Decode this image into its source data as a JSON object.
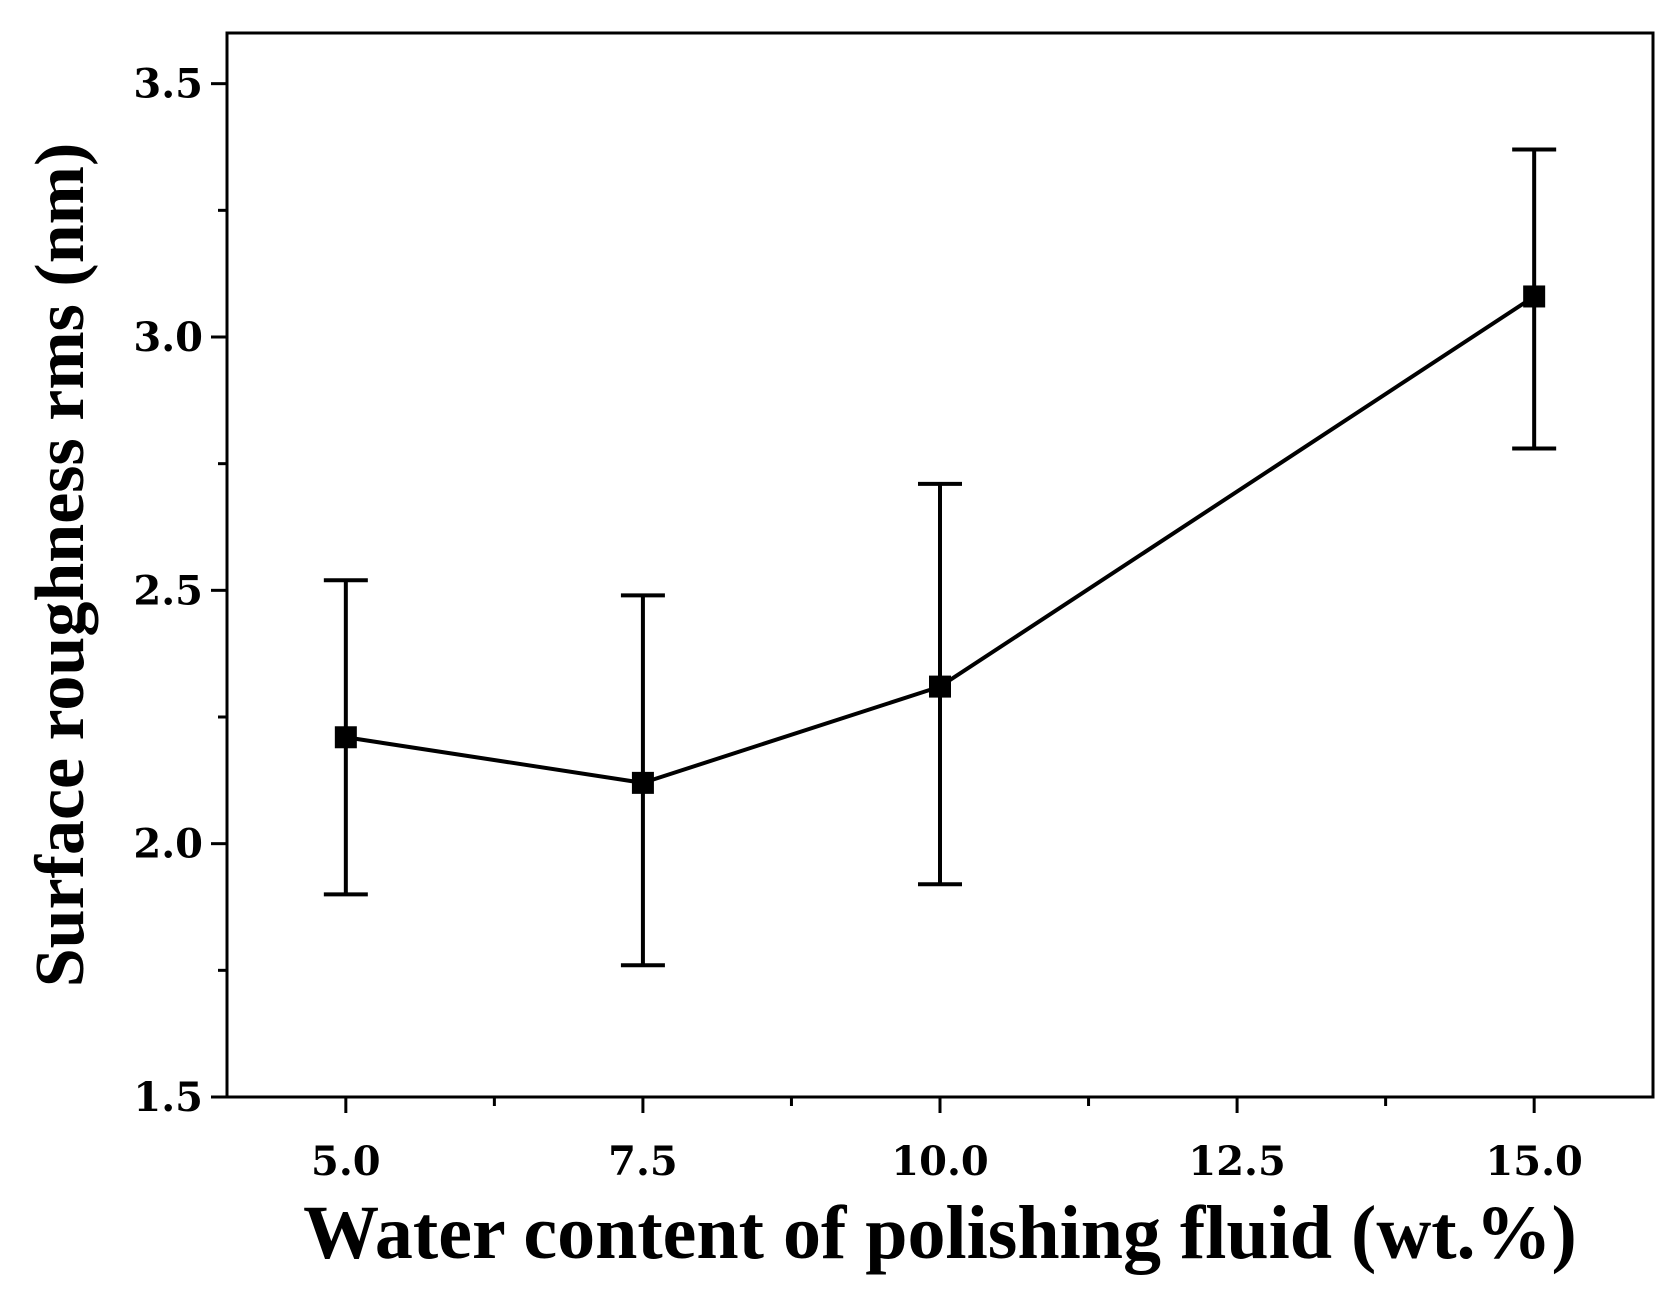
{
  "chart_data": {
    "type": "line",
    "title": "",
    "xlabel": "Water content of polishing fluid (wt.%)",
    "ylabel": "Surface roughness rms (nm)",
    "x": [
      5.0,
      7.5,
      10.0,
      15.0
    ],
    "series": [
      {
        "values": [
          2.21,
          2.12,
          2.31,
          3.08
        ],
        "error_low": [
          1.9,
          1.76,
          1.92,
          2.78
        ],
        "error_high": [
          2.52,
          2.49,
          2.71,
          3.37
        ],
        "marker": "square",
        "color": "#000000"
      }
    ],
    "xlim": [
      4.0,
      16.0
    ],
    "ylim": [
      1.5,
      3.6
    ],
    "xticks": [
      5.0,
      7.5,
      10.0,
      12.5,
      15.0
    ],
    "xtick_labels": [
      "5.0",
      "7.5",
      "10.0",
      "12.5",
      "15.0"
    ],
    "xminor_ticks": [
      6.25,
      8.75,
      11.25,
      13.75
    ],
    "yticks": [
      1.5,
      2.0,
      2.5,
      3.0,
      3.5
    ],
    "ytick_labels": [
      "1.5",
      "2.0",
      "2.5",
      "3.0",
      "3.5"
    ],
    "yminor_ticks": [
      1.75,
      2.25,
      2.75,
      3.25
    ],
    "grid": false,
    "legend": "none"
  }
}
